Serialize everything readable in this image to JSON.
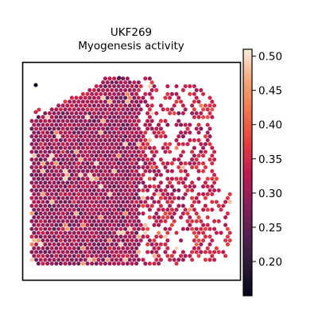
{
  "chart_data": {
    "type": "scatter",
    "plot_kind": "spatial spot map (hexagonal grid)",
    "title": "UKF269",
    "subtitle": "Myogenesis activity",
    "xlabel": "",
    "ylabel": "",
    "axes_ticks_visible": false,
    "grid": false,
    "colorbar": {
      "position": "right",
      "colormap": "rocket",
      "range": [
        0.15,
        0.51
      ],
      "ticks": [
        0.2,
        0.25,
        0.3,
        0.35,
        0.4,
        0.45,
        0.5
      ],
      "tick_labels": [
        "0.20",
        "0.25",
        "0.30",
        "0.35",
        "0.40",
        "0.45",
        "0.50"
      ]
    },
    "value_summary": {
      "min": 0.15,
      "max": 0.51,
      "typical": 0.3,
      "note_regions": [
        {
          "region": "left half (dense)",
          "typical_value": 0.3
        },
        {
          "region": "upper-left rim",
          "typical_value": 0.33
        },
        {
          "region": "right / lower-right (sparser)",
          "typical_value": 0.34
        },
        {
          "region": "top-right edge",
          "typical_value": 0.38
        }
      ]
    }
  }
}
